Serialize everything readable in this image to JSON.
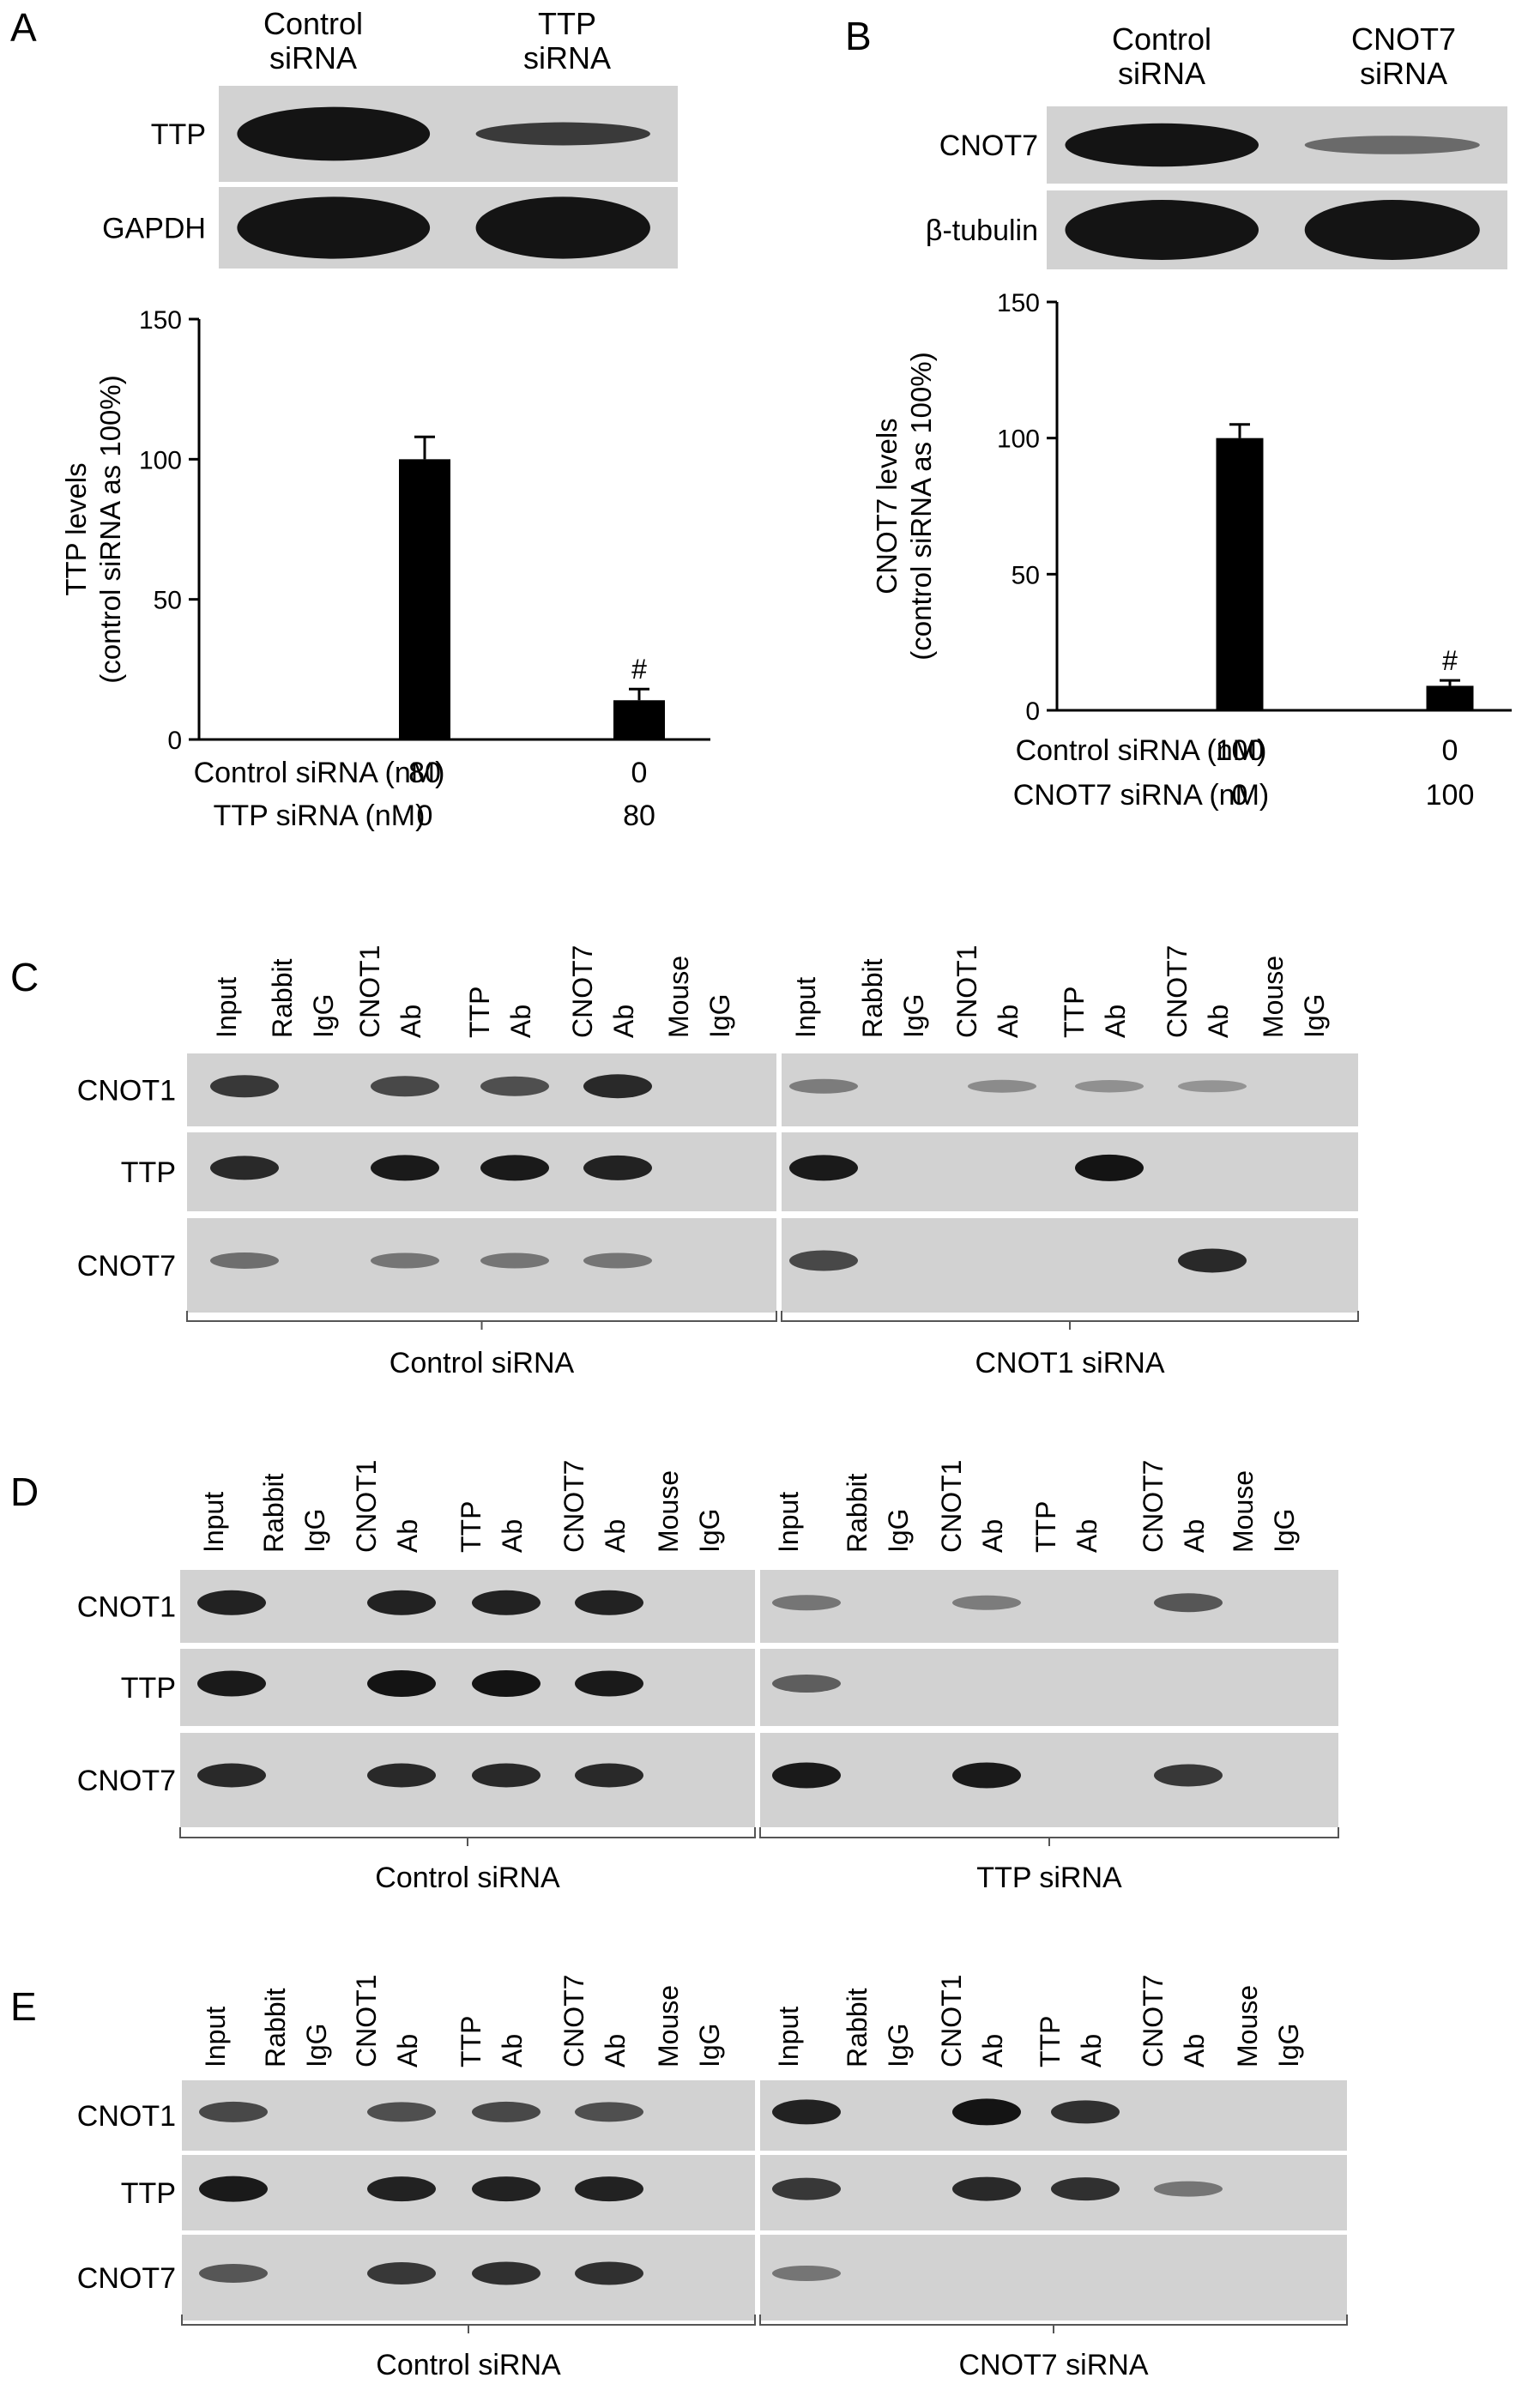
{
  "colors": {
    "background": "#ffffff",
    "bar": "#000000",
    "blot_light": "#d2d2d2",
    "blot_band": "#141414"
  },
  "chart_data": [
    {
      "panel": "A",
      "type": "bar",
      "blot": {
        "headers": [
          "Control\nsiRNA",
          "TTP\nsiRNA"
        ],
        "rows": [
          "TTP",
          "GAPDH"
        ]
      },
      "categories": [
        "80 / 0",
        "0 / 80"
      ],
      "values": [
        100,
        14
      ],
      "errors": [
        8,
        4
      ],
      "annotations": [
        "",
        "#"
      ],
      "ylabel": "TTP levels\n(control siRNA as 100%)",
      "ylim": [
        0,
        150
      ],
      "yticks": [
        0,
        50,
        100,
        150
      ],
      "conditions": [
        {
          "label": "Control siRNA (nM)",
          "values": [
            "80",
            "0"
          ]
        },
        {
          "label": "TTP siRNA (nM)",
          "values": [
            "0",
            "80"
          ]
        }
      ]
    },
    {
      "panel": "B",
      "type": "bar",
      "blot": {
        "headers": [
          "Control\nsiRNA",
          "CNOT7\nsiRNA"
        ],
        "rows": [
          "CNOT7",
          "β-tubulin"
        ]
      },
      "categories": [
        "100 / 0",
        "0 / 100"
      ],
      "values": [
        100,
        9
      ],
      "errors": [
        5,
        2
      ],
      "annotations": [
        "",
        "#"
      ],
      "ylabel": "CNOT7 levels\n(control siRNA as 100%)",
      "ylim": [
        0,
        150
      ],
      "yticks": [
        0,
        50,
        100,
        150
      ],
      "conditions": [
        {
          "label": "Control siRNA (nM)",
          "values": [
            "100",
            "0"
          ]
        },
        {
          "label": "CNOT7 siRNA (nM)",
          "values": [
            "0",
            "100"
          ]
        }
      ]
    }
  ],
  "ip_lanes": [
    "Input",
    "Rabbit\nIgG",
    "CNOT1\nAb",
    "TTP\nAb",
    "CNOT7\nAb",
    "Mouse\nIgG"
  ],
  "ip_panels": [
    {
      "letter": "C",
      "rows": [
        "CNOT1",
        "TTP",
        "CNOT7"
      ],
      "groups": [
        "Control siRNA",
        "CNOT1 siRNA"
      ],
      "bands": [
        [
          [
            0.7,
            0,
            0.6,
            0.55,
            0.8,
            0
          ],
          [
            0.25,
            0,
            0.15,
            0.12,
            0.1,
            0
          ]
        ],
        [
          [
            0.8,
            0,
            0.9,
            0.9,
            0.85,
            0
          ],
          [
            0.9,
            0,
            0,
            0.95,
            0,
            0
          ]
        ],
        [
          [
            0.35,
            0,
            0.3,
            0.3,
            0.3,
            0
          ],
          [
            0.6,
            0,
            0,
            0,
            0.8,
            0
          ]
        ]
      ]
    },
    {
      "letter": "D",
      "rows": [
        "CNOT1",
        "TTP",
        "CNOT7"
      ],
      "groups": [
        "Control siRNA",
        "TTP siRNA"
      ],
      "bands": [
        [
          [
            0.85,
            0,
            0.85,
            0.85,
            0.85,
            0
          ],
          [
            0.3,
            0,
            0.25,
            0,
            0.5,
            0
          ]
        ],
        [
          [
            0.9,
            0,
            0.95,
            0.95,
            0.9,
            0
          ],
          [
            0.45,
            0,
            0,
            0,
            0,
            0
          ]
        ],
        [
          [
            0.8,
            0,
            0.8,
            0.8,
            0.8,
            0
          ],
          [
            0.9,
            0,
            0.9,
            0,
            0.7,
            0
          ]
        ]
      ]
    },
    {
      "letter": "E",
      "rows": [
        "CNOT1",
        "TTP",
        "CNOT7"
      ],
      "groups": [
        "Control siRNA",
        "CNOT7 siRNA"
      ],
      "bands": [
        [
          [
            0.6,
            0,
            0.55,
            0.6,
            0.55,
            0
          ],
          [
            0.85,
            0,
            0.95,
            0.75,
            0,
            0
          ]
        ],
        [
          [
            0.9,
            0,
            0.85,
            0.85,
            0.85,
            0
          ],
          [
            0.7,
            0,
            0.8,
            0.75,
            0.3,
            0
          ]
        ],
        [
          [
            0.5,
            0,
            0.7,
            0.75,
            0.75,
            0
          ],
          [
            0.3,
            0,
            0,
            0,
            0,
            0
          ]
        ]
      ]
    }
  ]
}
